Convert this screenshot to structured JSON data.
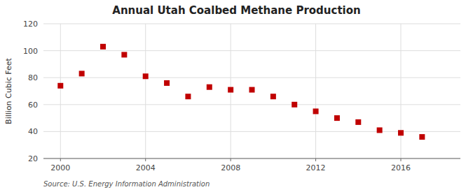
{
  "chart_data": {
    "type": "scatter",
    "title": "Annual Utah Coalbed Methane Production",
    "ylabel": "Billion Cubic Feet",
    "source": "Source: U.S. Energy Information Administration",
    "x": [
      2000,
      2001,
      2002,
      2003,
      2004,
      2005,
      2006,
      2007,
      2008,
      2009,
      2010,
      2011,
      2012,
      2013,
      2014,
      2015,
      2016,
      2017
    ],
    "values": [
      74,
      83,
      103,
      97,
      81,
      76,
      66,
      73,
      71,
      71,
      66,
      60,
      55,
      50,
      47,
      41,
      39,
      36
    ],
    "color": "#c00000",
    "marker": "square",
    "xlim": [
      1999.2,
      2018.8
    ],
    "ylim": [
      20,
      120
    ],
    "xticks": [
      2000,
      2004,
      2008,
      2012,
      2016
    ],
    "yticks": [
      20,
      40,
      60,
      80,
      100,
      120
    ],
    "grid": true
  }
}
